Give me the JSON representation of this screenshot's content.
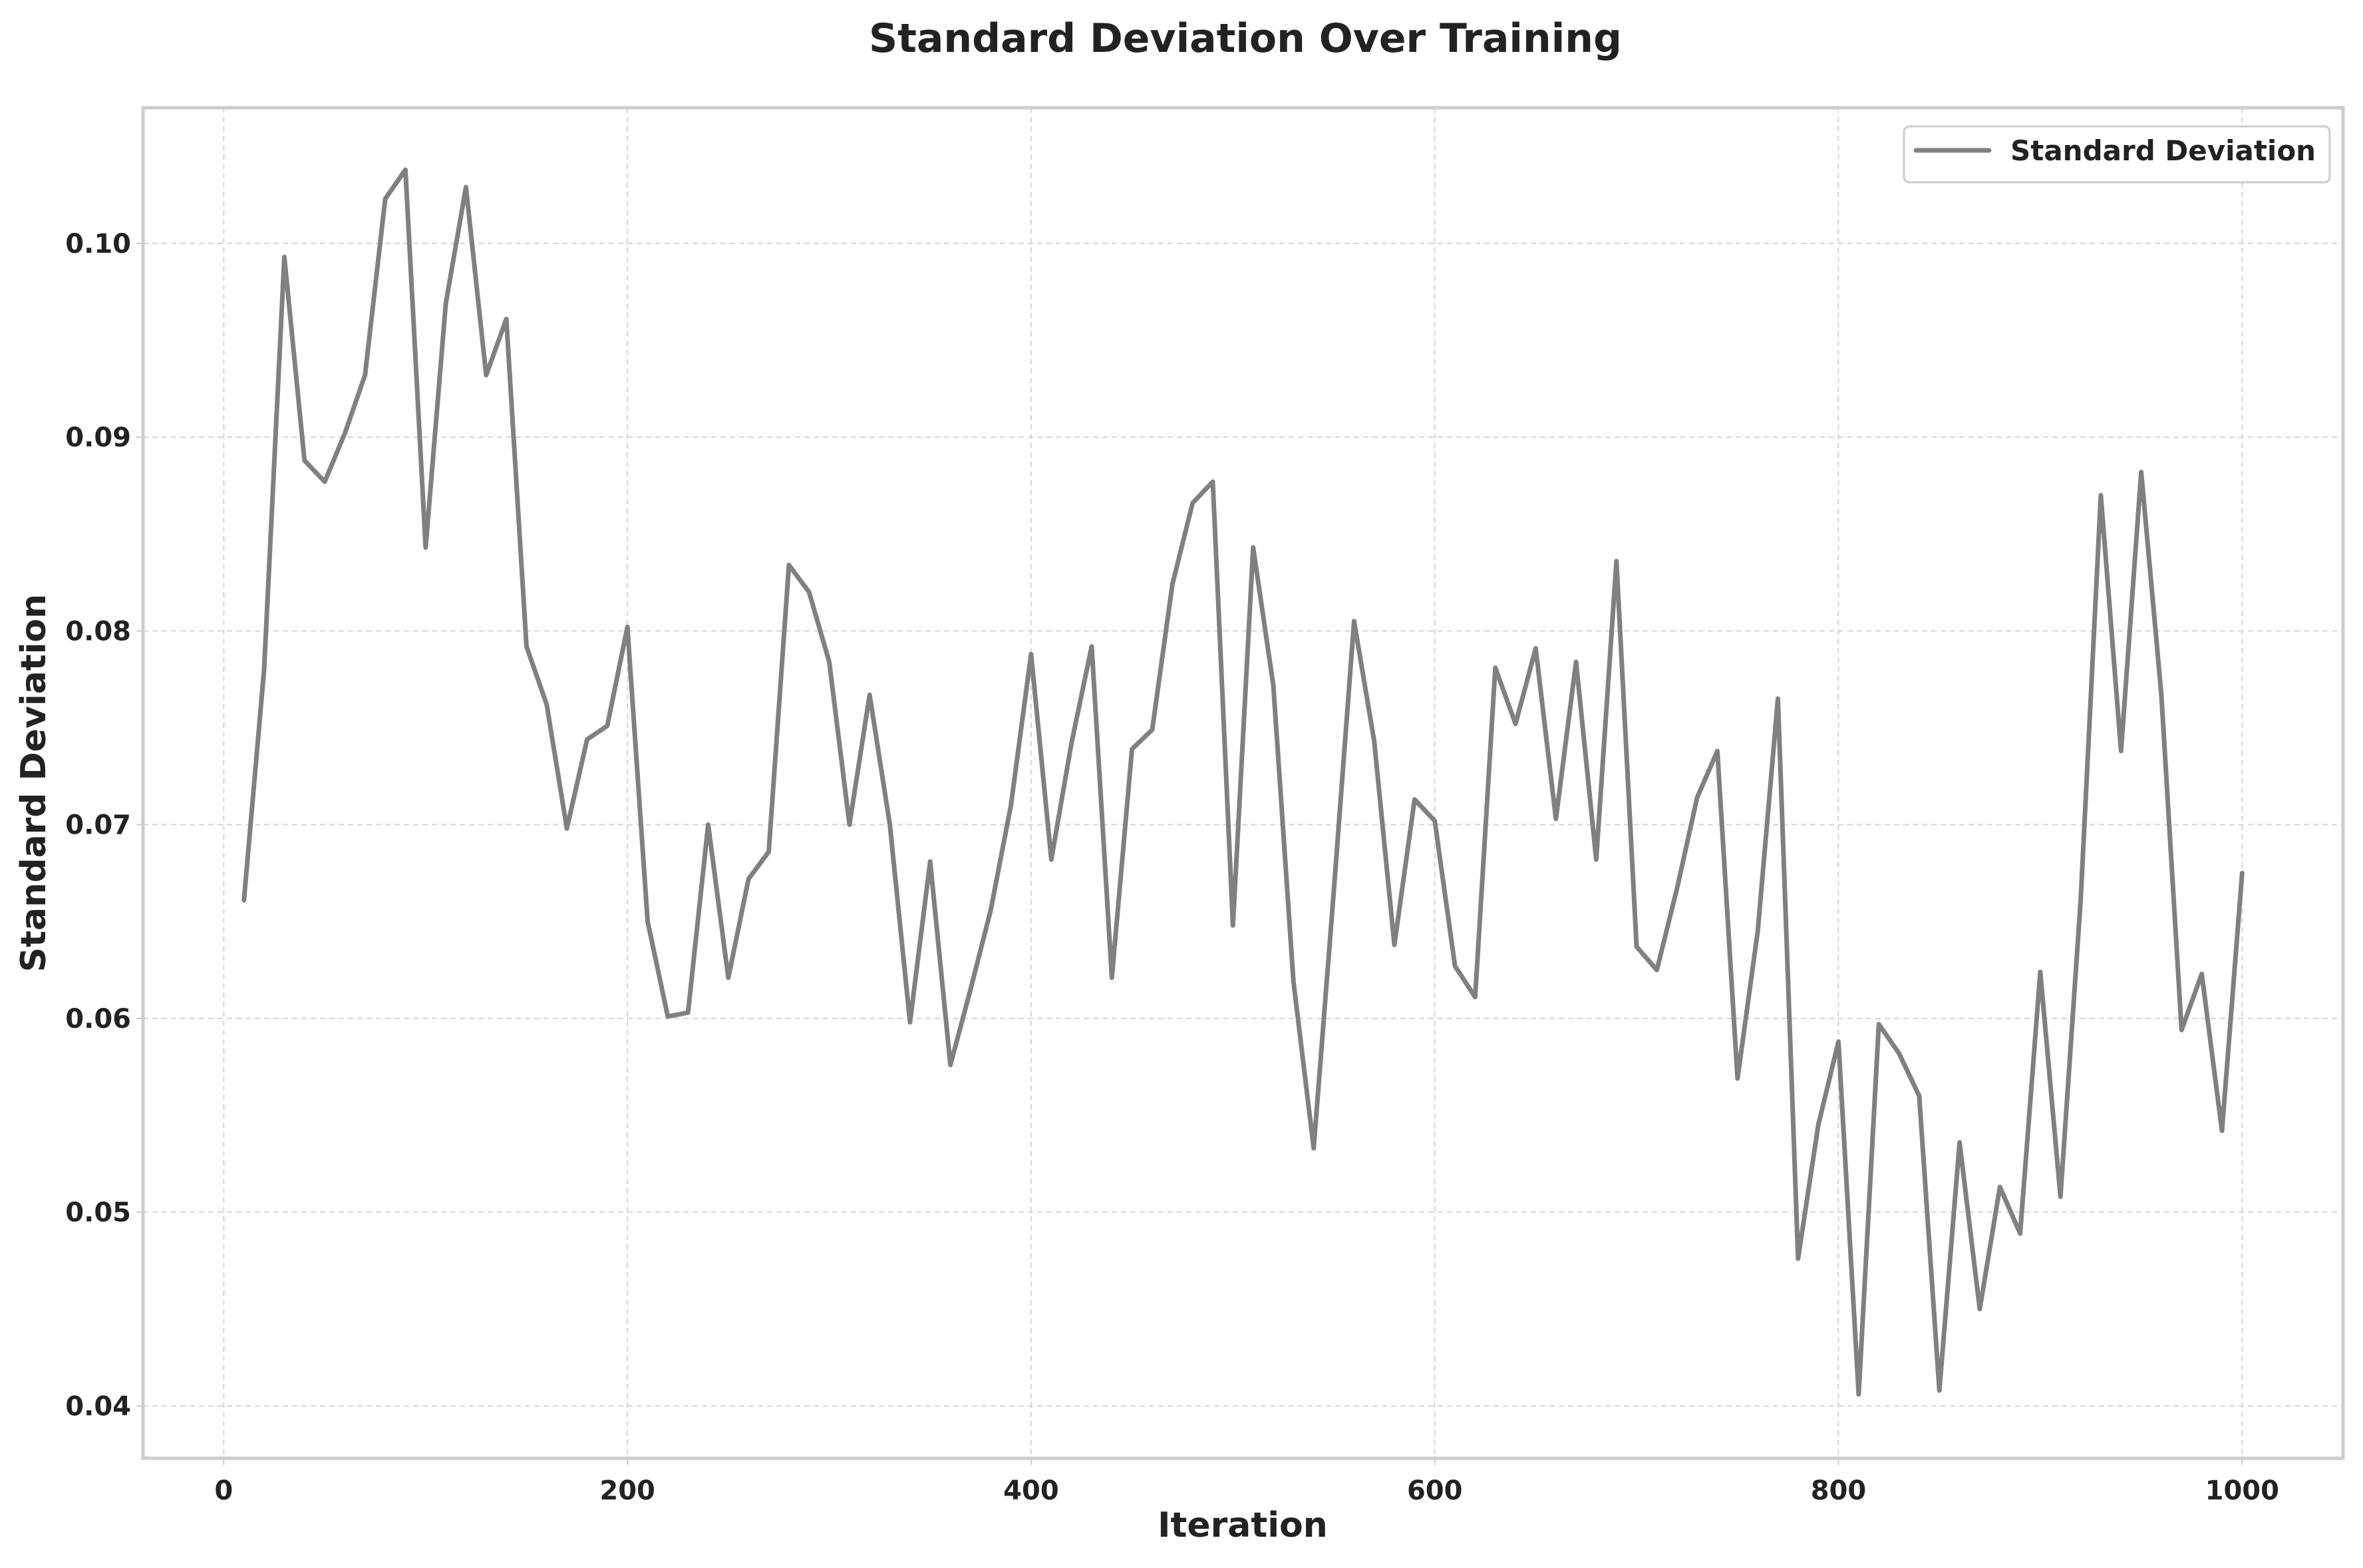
{
  "colors": {
    "series": "#808080",
    "frame": "#cccccc",
    "grid": "#d5d5d5",
    "text": "#222222"
  },
  "chart_data": {
    "type": "line",
    "title": "Standard Deviation Over Training",
    "xlabel": "Iteration",
    "ylabel": "Standard Deviation",
    "xlim": [
      -40,
      1050
    ],
    "ylim": [
      0.0373,
      0.107
    ],
    "xticks": [
      0,
      200,
      400,
      600,
      800,
      1000
    ],
    "xtick_labels": [
      "0",
      "200",
      "400",
      "600",
      "800",
      "1000"
    ],
    "yticks": [
      0.04,
      0.05,
      0.06,
      0.07,
      0.08,
      0.09,
      0.1
    ],
    "ytick_labels": [
      "0.04",
      "0.05",
      "0.06",
      "0.07",
      "0.08",
      "0.09",
      "0.10"
    ],
    "grid": true,
    "legend_position": "top-right",
    "series": [
      {
        "name": "Standard Deviation",
        "color": "#808080",
        "x": [
          10,
          20,
          30,
          40,
          50,
          60,
          70,
          80,
          90,
          100,
          110,
          120,
          130,
          140,
          150,
          160,
          170,
          180,
          190,
          200,
          210,
          220,
          230,
          240,
          250,
          260,
          270,
          280,
          290,
          300,
          310,
          320,
          330,
          340,
          350,
          360,
          370,
          380,
          390,
          400,
          410,
          420,
          430,
          440,
          450,
          460,
          470,
          480,
          490,
          500,
          510,
          520,
          530,
          540,
          550,
          560,
          570,
          580,
          590,
          600,
          610,
          620,
          630,
          640,
          650,
          660,
          670,
          680,
          690,
          700,
          710,
          720,
          730,
          740,
          750,
          760,
          770,
          780,
          790,
          800,
          810,
          820,
          830,
          840,
          850,
          860,
          870,
          880,
          890,
          900,
          910,
          920,
          930,
          940,
          950,
          960,
          970,
          980,
          990,
          1000
        ],
        "values": [
          0.0661,
          0.078,
          0.0993,
          0.0888,
          0.0877,
          0.0902,
          0.0932,
          0.1023,
          0.1038,
          0.0843,
          0.0969,
          0.1029,
          0.0932,
          0.0961,
          0.0792,
          0.0762,
          0.0698,
          0.0744,
          0.0751,
          0.0802,
          0.065,
          0.0601,
          0.0603,
          0.07,
          0.0621,
          0.0672,
          0.0686,
          0.0834,
          0.082,
          0.0784,
          0.07,
          0.0767,
          0.07,
          0.0598,
          0.0681,
          0.0576,
          0.0615,
          0.0656,
          0.071,
          0.0788,
          0.0682,
          0.0742,
          0.0792,
          0.0621,
          0.0739,
          0.0749,
          0.0824,
          0.0866,
          0.0877,
          0.0648,
          0.0843,
          0.0772,
          0.0619,
          0.0533,
          0.0666,
          0.0805,
          0.0743,
          0.0638,
          0.0713,
          0.0702,
          0.0627,
          0.0611,
          0.0781,
          0.0752,
          0.0791,
          0.0703,
          0.0784,
          0.0682,
          0.0836,
          0.0637,
          0.0625,
          0.0667,
          0.0714,
          0.0738,
          0.0569,
          0.0645,
          0.0765,
          0.0476,
          0.0545,
          0.0588,
          0.0406,
          0.0597,
          0.0582,
          0.056,
          0.0408,
          0.0536,
          0.045,
          0.0513,
          0.0489,
          0.0624,
          0.0508,
          0.0661,
          0.087,
          0.0738,
          0.0882,
          0.0767,
          0.0594,
          0.0623,
          0.0542,
          0.0675
        ]
      }
    ]
  }
}
